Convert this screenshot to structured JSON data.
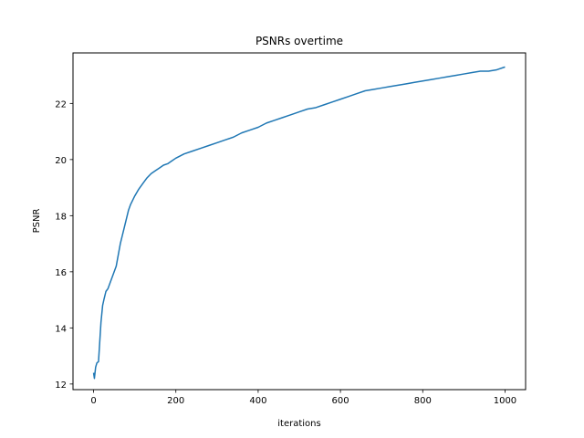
{
  "chart_data": {
    "type": "line",
    "title": "PSNRs overtime",
    "xlabel": "iterations",
    "ylabel": "PSNR",
    "xlim": [
      -50,
      1050
    ],
    "ylim": [
      11.8,
      23.8
    ],
    "x_ticks": [
      0,
      200,
      400,
      600,
      800,
      1000
    ],
    "y_ticks": [
      12,
      14,
      16,
      18,
      20,
      22
    ],
    "grid": false,
    "legend": "none",
    "series": [
      {
        "color": "#1f77b4",
        "points": [
          [
            0,
            12.4
          ],
          [
            2,
            12.2
          ],
          [
            5,
            12.6
          ],
          [
            8,
            12.75
          ],
          [
            12,
            12.8
          ],
          [
            15,
            13.5
          ],
          [
            18,
            14.2
          ],
          [
            22,
            14.8
          ],
          [
            25,
            15.0
          ],
          [
            30,
            15.3
          ],
          [
            35,
            15.4
          ],
          [
            40,
            15.6
          ],
          [
            45,
            15.8
          ],
          [
            50,
            16.0
          ],
          [
            55,
            16.2
          ],
          [
            60,
            16.6
          ],
          [
            65,
            17.0
          ],
          [
            70,
            17.3
          ],
          [
            75,
            17.6
          ],
          [
            80,
            17.9
          ],
          [
            85,
            18.2
          ],
          [
            90,
            18.4
          ],
          [
            100,
            18.7
          ],
          [
            110,
            18.95
          ],
          [
            120,
            19.15
          ],
          [
            130,
            19.35
          ],
          [
            140,
            19.5
          ],
          [
            150,
            19.6
          ],
          [
            160,
            19.7
          ],
          [
            170,
            19.8
          ],
          [
            180,
            19.85
          ],
          [
            190,
            19.95
          ],
          [
            200,
            20.05
          ],
          [
            220,
            20.2
          ],
          [
            240,
            20.3
          ],
          [
            260,
            20.4
          ],
          [
            280,
            20.5
          ],
          [
            300,
            20.6
          ],
          [
            320,
            20.7
          ],
          [
            340,
            20.8
          ],
          [
            360,
            20.95
          ],
          [
            380,
            21.05
          ],
          [
            400,
            21.15
          ],
          [
            420,
            21.3
          ],
          [
            440,
            21.4
          ],
          [
            460,
            21.5
          ],
          [
            480,
            21.6
          ],
          [
            500,
            21.7
          ],
          [
            520,
            21.8
          ],
          [
            540,
            21.85
          ],
          [
            560,
            21.95
          ],
          [
            580,
            22.05
          ],
          [
            600,
            22.15
          ],
          [
            620,
            22.25
          ],
          [
            640,
            22.35
          ],
          [
            660,
            22.45
          ],
          [
            680,
            22.5
          ],
          [
            700,
            22.55
          ],
          [
            720,
            22.6
          ],
          [
            740,
            22.65
          ],
          [
            760,
            22.7
          ],
          [
            780,
            22.75
          ],
          [
            800,
            22.8
          ],
          [
            820,
            22.85
          ],
          [
            840,
            22.9
          ],
          [
            860,
            22.95
          ],
          [
            880,
            23.0
          ],
          [
            900,
            23.05
          ],
          [
            920,
            23.1
          ],
          [
            940,
            23.15
          ],
          [
            960,
            23.15
          ],
          [
            980,
            23.2
          ],
          [
            1000,
            23.3
          ]
        ]
      }
    ]
  }
}
